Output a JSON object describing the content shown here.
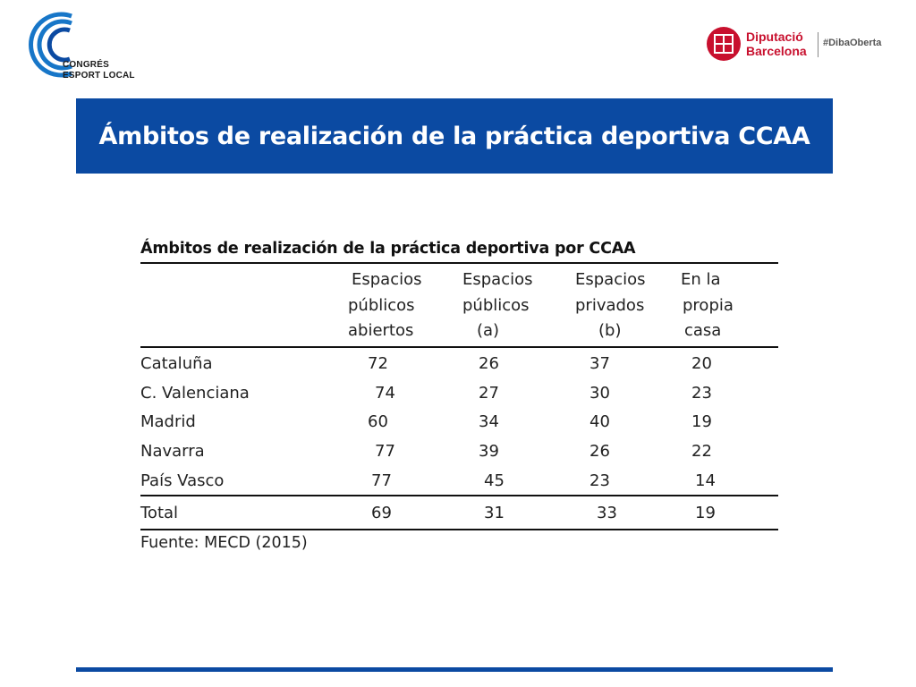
{
  "logos": {
    "left": {
      "line1": "CONGRÉS",
      "line2": "ESPORT LOCAL"
    },
    "right": {
      "name1": "Diputació",
      "name2": "Barcelona",
      "tag": "#DibaOberta"
    }
  },
  "banner": {
    "title": "Ámbitos de realización de la práctica deportiva CCAA"
  },
  "table": {
    "caption": "Ámbitos de realización de la práctica deportiva por CCAA",
    "headers": [
      [
        "Espacios",
        "públicos",
        "abiertos"
      ],
      [
        "Espacios",
        "públicos",
        "(a)"
      ],
      [
        "Espacios",
        "privados",
        "(b)"
      ],
      [
        "En la",
        "propia",
        "casa"
      ]
    ],
    "rows": [
      {
        "name": "Cataluña",
        "values": [
          "72",
          "26",
          "37",
          "20"
        ]
      },
      {
        "name": "C. Valenciana",
        "values": [
          "74",
          "27",
          "30",
          "23"
        ]
      },
      {
        "name": "Madrid",
        "values": [
          "60",
          "34",
          "40",
          "19"
        ]
      },
      {
        "name": "Navarra",
        "values": [
          "77",
          "39",
          "26",
          "22"
        ]
      },
      {
        "name": "País Vasco",
        "values": [
          "77",
          "45",
          "23",
          "14"
        ]
      }
    ],
    "total": {
      "name": "Total",
      "values": [
        "69",
        "31",
        "33",
        "19"
      ]
    },
    "source": "Fuente: MECD (2015)"
  },
  "colors": {
    "brand_blue": "#0b4aa2",
    "brand_red": "#c8102e"
  }
}
